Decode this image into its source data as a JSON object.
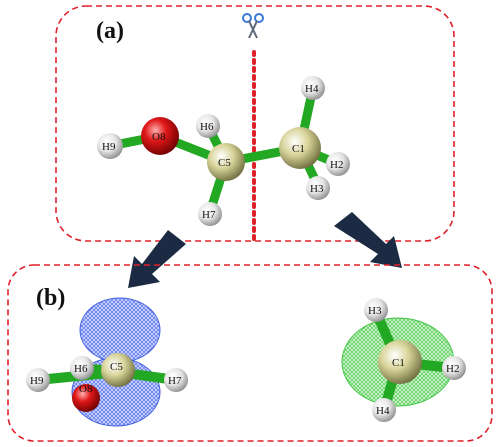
{
  "panels": {
    "a": {
      "label": "(a)"
    },
    "b": {
      "label": "(b)"
    }
  },
  "atoms_a": {
    "O8": "O8",
    "H9": "H9",
    "C5": "C5",
    "H6": "H6",
    "H7": "H7",
    "C1": "C1",
    "H4": "H4",
    "H2": "H2",
    "H3": "H3"
  },
  "fragment_left": {
    "C5": "C5",
    "H6": "H6",
    "O8": "O8",
    "H9": "H9",
    "H7": "H7"
  },
  "fragment_right": {
    "C1": "C1",
    "H3": "H3",
    "H2": "H2",
    "H4": "H4"
  },
  "icons": [
    "scissors-icon",
    "arrow-down-left-icon",
    "arrow-down-right-icon"
  ],
  "colors": {
    "frame": "#e0202a",
    "cut_line": "#e0202a",
    "carbon": "#d8d49a",
    "oxygen": "#e01818",
    "hydrogen": "#e8e8e8",
    "bond": "#2eb82e",
    "orbital_blue": "#2f50e0",
    "orbital_green": "#2ec02e",
    "arrow": "#1c2a44",
    "scissors": "#3a78d8"
  }
}
